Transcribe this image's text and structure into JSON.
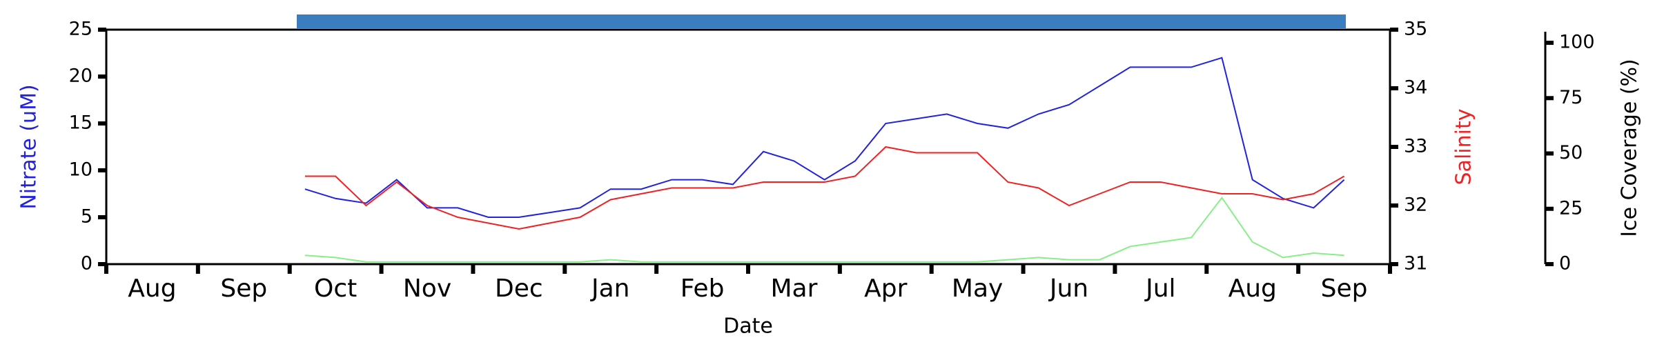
{
  "chart_data": {
    "type": "line",
    "x_label": "Date",
    "categories": [
      null,
      "Aug",
      null,
      null,
      "Sep",
      null,
      null,
      "Oct",
      null,
      null,
      "Nov",
      null,
      null,
      "Dec",
      null,
      null,
      "Jan",
      null,
      null,
      "Feb",
      null,
      null,
      "Mar",
      null,
      null,
      "Apr",
      null,
      null,
      "May",
      null,
      null,
      "Jun",
      null,
      null,
      "Jul",
      null,
      null,
      "Aug",
      null,
      null,
      "Sep",
      null
    ],
    "series": [
      {
        "name": "Nitrate (uM)",
        "color": "#2222dd",
        "axis": "y",
        "values": [
          null,
          null,
          null,
          null,
          null,
          null,
          8,
          7,
          6.5,
          9,
          6,
          6,
          5,
          5,
          5.5,
          6,
          8,
          8,
          9,
          9,
          8.5,
          12,
          11,
          9,
          11,
          15,
          15.5,
          16,
          15,
          14.5,
          16,
          17,
          19,
          21,
          21,
          21,
          22,
          9,
          7,
          6,
          9,
          null
        ]
      },
      {
        "name": "Salinity",
        "color": "#ee2222",
        "axis": "y2",
        "values": [
          null,
          null,
          null,
          null,
          null,
          null,
          32.5,
          32.5,
          32.0,
          32.4,
          32.0,
          31.8,
          31.7,
          31.6,
          31.7,
          31.8,
          32.1,
          32.2,
          32.3,
          32.3,
          32.3,
          32.4,
          32.4,
          32.4,
          32.5,
          33.0,
          32.9,
          32.9,
          32.9,
          32.4,
          32.3,
          32.0,
          32.2,
          32.4,
          32.4,
          32.3,
          32.2,
          32.2,
          32.1,
          32.2,
          32.5,
          null
        ]
      },
      {
        "name": "Ice Coverage (%)",
        "color": "#88ee88",
        "axis": "y3",
        "values": [
          null,
          null,
          null,
          null,
          null,
          null,
          4,
          3,
          1,
          1,
          1,
          1,
          1,
          1,
          1,
          1,
          2,
          1,
          1,
          1,
          1,
          1,
          1,
          1,
          1,
          1,
          1,
          1,
          1,
          2,
          3,
          2,
          2,
          8,
          10,
          12,
          30,
          10,
          3,
          5,
          4,
          null
        ]
      }
    ],
    "ylim": [
      0,
      25
    ],
    "yticks": [
      0,
      5,
      10,
      15,
      20,
      25
    ],
    "y2lim": [
      31,
      35
    ],
    "y2ticks": [
      31,
      32,
      33,
      34,
      35
    ],
    "y3lim": [
      0,
      105
    ],
    "y3ticks": [
      0,
      25,
      50,
      75,
      100
    ]
  }
}
